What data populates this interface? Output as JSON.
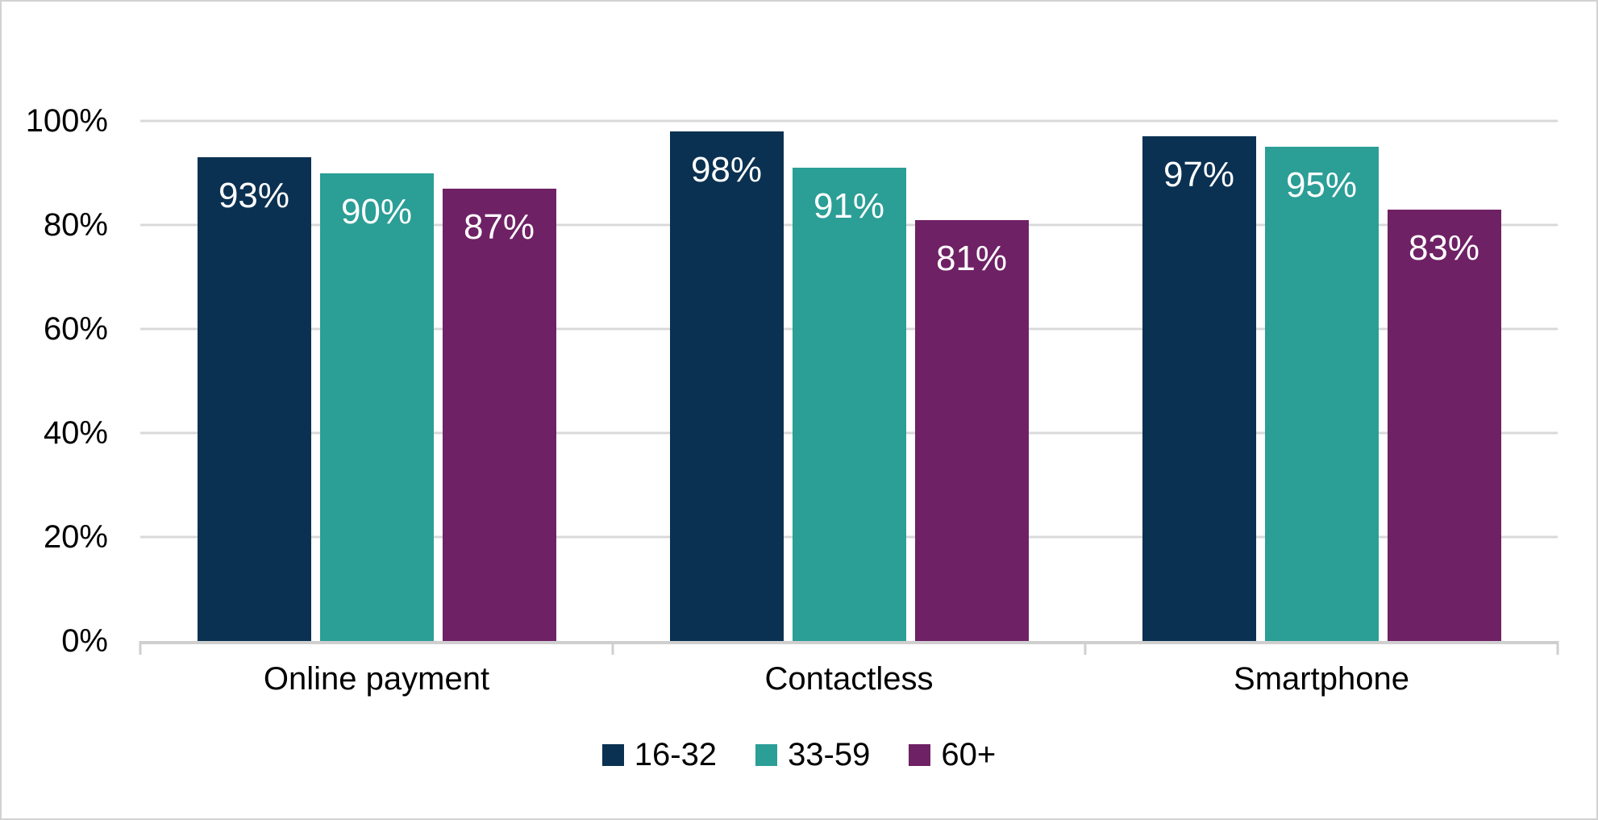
{
  "chart_data": {
    "type": "bar",
    "categories": [
      "Online payment",
      "Contactless",
      "Smartphone"
    ],
    "series": [
      {
        "name": "16-32",
        "color": "#0a3152",
        "values": [
          93,
          98,
          97
        ],
        "labels": [
          "93%",
          "98%",
          "97%"
        ]
      },
      {
        "name": "33-59",
        "color": "#2b9e96",
        "values": [
          90,
          91,
          95
        ],
        "labels": [
          "90%",
          "91%",
          "95%"
        ]
      },
      {
        "name": "60+",
        "color": "#6f2165",
        "values": [
          87,
          81,
          83
        ],
        "labels": [
          "87%",
          "81%",
          "83%"
        ]
      }
    ],
    "y_ticks": [
      {
        "value": 0,
        "label": "0%"
      },
      {
        "value": 20,
        "label": "20%"
      },
      {
        "value": 40,
        "label": "40%"
      },
      {
        "value": 60,
        "label": "60%"
      },
      {
        "value": 80,
        "label": "80%"
      },
      {
        "value": 100,
        "label": "100%"
      }
    ],
    "ylim": [
      0,
      100
    ],
    "grid": true,
    "legend_position": "bottom",
    "data_label_color": "#ffffff"
  },
  "colors": {
    "background": "#ffffff",
    "border": "#d2d2d2",
    "gridline": "#d9d9d9",
    "axis": "#cfcfcf",
    "text": "#000000"
  }
}
